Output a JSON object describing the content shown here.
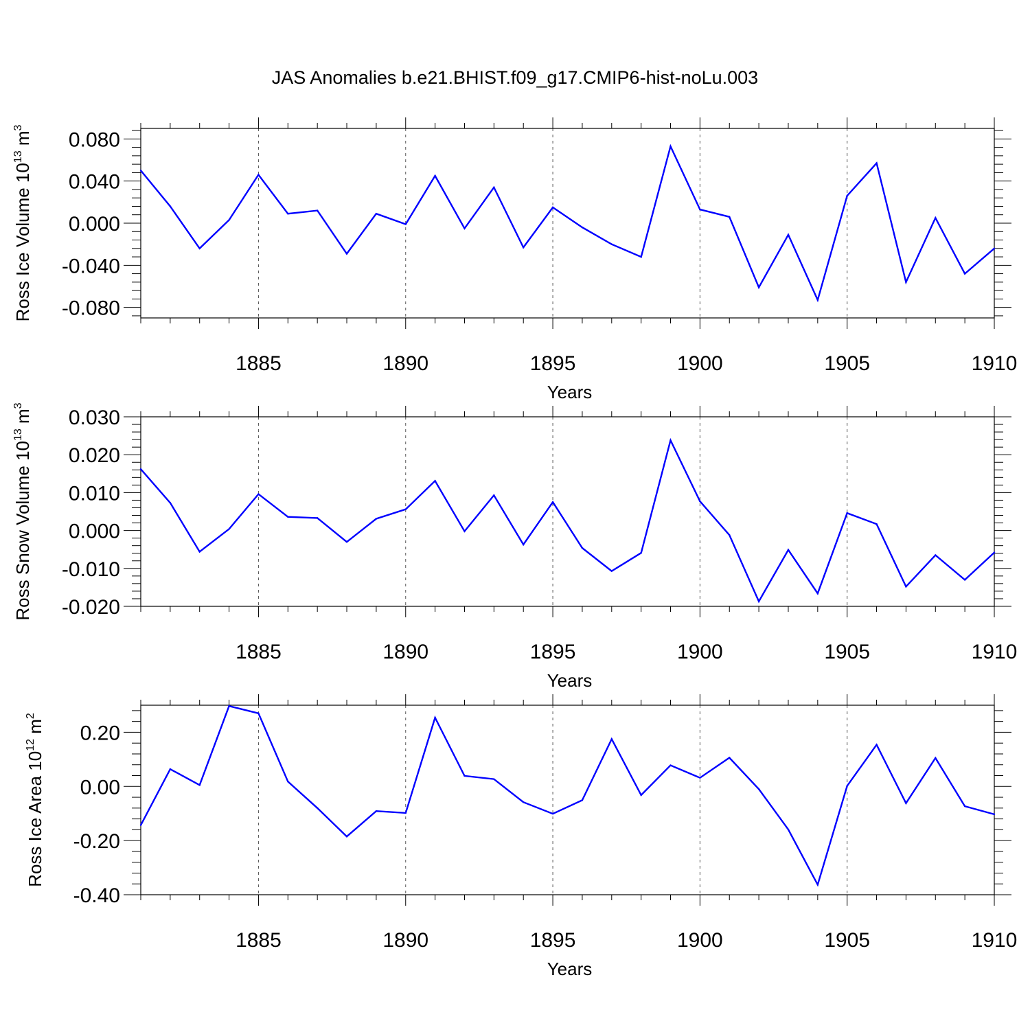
{
  "title": "JAS Anomalies b.e21.BHIST.f09_g17.CMIP6-hist-noLu.003",
  "colors": {
    "series": "#0000ff",
    "axis": "#000000",
    "grid": "#555555"
  },
  "chart_data": [
    {
      "type": "line",
      "xlabel": "Years",
      "ylabel": {
        "text": "Ross Ice Volume 10",
        "exp": "13",
        "unit": " m",
        "unit_exp": "3"
      },
      "xlim": [
        1881,
        1910
      ],
      "ylim": [
        -0.09,
        0.09
      ],
      "x_ticks": [
        "1885",
        "1890",
        "1895",
        "1900",
        "1905",
        "1910"
      ],
      "y_ticks": [
        "0.080",
        "0.040",
        "0.000",
        "-0.040",
        "-0.080"
      ],
      "y_tick_values": [
        0.08,
        0.04,
        0.0,
        -0.04,
        -0.08
      ],
      "grid": "vertical dashed at major x ticks",
      "x": [
        1881,
        1882,
        1883,
        1884,
        1885,
        1886,
        1887,
        1888,
        1889,
        1890,
        1891,
        1892,
        1893,
        1894,
        1895,
        1896,
        1897,
        1898,
        1899,
        1900,
        1901,
        1902,
        1903,
        1904,
        1905,
        1906,
        1907,
        1908,
        1909,
        1910
      ],
      "values": [
        0.05,
        0.016,
        -0.024,
        0.003,
        0.046,
        0.009,
        0.012,
        -0.029,
        0.009,
        -0.001,
        0.045,
        -0.005,
        0.034,
        -0.023,
        0.015,
        -0.004,
        -0.02,
        -0.032,
        0.073,
        0.013,
        0.006,
        -0.061,
        -0.011,
        -0.073,
        0.026,
        0.057,
        -0.056,
        0.005,
        -0.048,
        -0.024
      ]
    },
    {
      "type": "line",
      "xlabel": "Years",
      "ylabel": {
        "text": "Ross Snow Volume 10",
        "exp": "13",
        "unit": " m",
        "unit_exp": "3"
      },
      "xlim": [
        1881,
        1910
      ],
      "ylim": [
        -0.02,
        0.03
      ],
      "x_ticks": [
        "1885",
        "1890",
        "1895",
        "1900",
        "1905",
        "1910"
      ],
      "y_ticks": [
        "0.030",
        "0.020",
        "0.010",
        "0.000",
        "-0.010",
        "-0.020"
      ],
      "y_tick_values": [
        0.03,
        0.02,
        0.01,
        0.0,
        -0.01,
        -0.02
      ],
      "grid": "vertical dashed at major x ticks",
      "x": [
        1881,
        1882,
        1883,
        1884,
        1885,
        1886,
        1887,
        1888,
        1889,
        1890,
        1891,
        1892,
        1893,
        1894,
        1895,
        1896,
        1897,
        1898,
        1899,
        1900,
        1901,
        1902,
        1903,
        1904,
        1905,
        1906,
        1907,
        1908,
        1909,
        1910
      ],
      "values": [
        0.0162,
        0.0073,
        -0.0056,
        0.0004,
        0.0096,
        0.0036,
        0.0033,
        -0.003,
        0.0031,
        0.0056,
        0.0131,
        -0.0002,
        0.0093,
        -0.0037,
        0.0075,
        -0.0046,
        -0.0107,
        -0.0059,
        0.0238,
        0.0077,
        -0.0012,
        -0.0187,
        -0.0051,
        -0.0166,
        0.0046,
        0.0017,
        -0.0148,
        -0.0065,
        -0.013,
        -0.0058
      ]
    },
    {
      "type": "line",
      "xlabel": "Years",
      "ylabel": {
        "text": "Ross Ice Area 10",
        "exp": "12",
        "unit": " m",
        "unit_exp": "2"
      },
      "xlim": [
        1881,
        1910
      ],
      "ylim": [
        -0.4,
        0.3
      ],
      "x_ticks": [
        "1885",
        "1890",
        "1895",
        "1900",
        "1905",
        "1910"
      ],
      "y_ticks": [
        "0.20",
        "0.00",
        "-0.20",
        "-0.40"
      ],
      "y_tick_values": [
        0.2,
        0.0,
        -0.2,
        -0.4
      ],
      "grid": "vertical dashed at major x ticks",
      "x": [
        1881,
        1882,
        1883,
        1884,
        1885,
        1886,
        1887,
        1888,
        1889,
        1890,
        1891,
        1892,
        1893,
        1894,
        1895,
        1896,
        1897,
        1898,
        1899,
        1900,
        1901,
        1902,
        1903,
        1904,
        1905,
        1906,
        1907,
        1908,
        1909,
        1910
      ],
      "values": [
        -0.143,
        0.064,
        0.005,
        0.297,
        0.27,
        0.018,
        -0.08,
        -0.185,
        -0.091,
        -0.098,
        0.254,
        0.039,
        0.027,
        -0.058,
        -0.101,
        -0.051,
        0.175,
        -0.032,
        0.078,
        0.032,
        0.106,
        -0.01,
        -0.159,
        -0.363,
        0.002,
        0.154,
        -0.062,
        0.105,
        -0.073,
        -0.103
      ]
    }
  ]
}
